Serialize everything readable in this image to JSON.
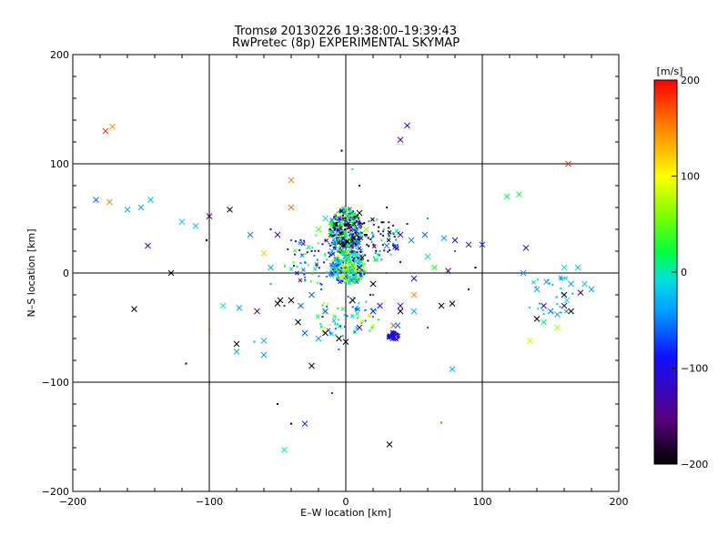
{
  "chart_data": {
    "type": "scatter",
    "title": "Tromsø 20130226 19:38:00–19:39:43",
    "subtitle": "RwPretec (8p) EXPERIMENTAL SKYMAP",
    "xlabel": "E–W location [km]",
    "ylabel": "N–S location [km]",
    "xlim": [
      -200,
      200
    ],
    "ylim": [
      -200,
      200
    ],
    "xticks": [
      "−200",
      "−100",
      "0",
      "100",
      "200"
    ],
    "yticks": [
      "−200",
      "−100",
      "0",
      "100",
      "200"
    ],
    "grid": true,
    "colorbar": {
      "label": "[m/s]",
      "range": [
        -200,
        200
      ],
      "ticks": [
        "200",
        "100",
        "0",
        "−100",
        "−200"
      ]
    },
    "series": [
      {
        "marker": "x",
        "points": [
          [
            -171,
            134,
            150
          ],
          [
            -176,
            130,
            180
          ],
          [
            -183,
            67,
            -60
          ],
          [
            -173,
            65,
            150
          ],
          [
            -160,
            58,
            -30
          ],
          [
            -150,
            60,
            -40
          ],
          [
            -143,
            67,
            -30
          ],
          [
            -145,
            25,
            -100
          ],
          [
            -128,
            0,
            -200
          ],
          [
            -155,
            -33,
            -200
          ],
          [
            -110,
            43,
            -20
          ],
          [
            -100,
            52,
            -160
          ],
          [
            -85,
            58,
            -200
          ],
          [
            -90,
            -30,
            0
          ],
          [
            -78,
            -32,
            -40
          ],
          [
            -60,
            -62,
            -30
          ],
          [
            -50,
            -28,
            -200
          ],
          [
            -40,
            -25,
            -200
          ],
          [
            -48,
            -25,
            -200
          ],
          [
            -35,
            -45,
            -200
          ],
          [
            -15,
            -35,
            -60
          ],
          [
            -20,
            -60,
            -40
          ],
          [
            -30,
            -55,
            -60
          ],
          [
            -25,
            -85,
            -200
          ],
          [
            -15,
            -55,
            -200
          ],
          [
            -5,
            -60,
            -200
          ],
          [
            0,
            -63,
            -200
          ],
          [
            10,
            -50,
            -120
          ],
          [
            20,
            -35,
            -100
          ],
          [
            35,
            -48,
            170
          ],
          [
            33,
            -58,
            -100
          ],
          [
            38,
            -48,
            -60
          ],
          [
            50,
            -35,
            -40
          ],
          [
            70,
            -30,
            -200
          ],
          [
            78,
            -28,
            -200
          ],
          [
            78,
            -88,
            -30
          ],
          [
            40,
            -35,
            -200
          ],
          [
            25,
            -30,
            -100
          ],
          [
            50,
            -5,
            -100
          ],
          [
            60,
            15,
            0
          ],
          [
            65,
            5,
            30
          ],
          [
            80,
            30,
            -100
          ],
          [
            90,
            26,
            -120
          ],
          [
            72,
            32,
            -40
          ],
          [
            45,
            135,
            -100
          ],
          [
            40,
            122,
            -150
          ],
          [
            -40,
            85,
            150
          ],
          [
            -40,
            60,
            160
          ],
          [
            -50,
            35,
            -140
          ],
          [
            -70,
            35,
            -50
          ],
          [
            -80,
            -72,
            -30
          ],
          [
            -80,
            -65,
            -200
          ],
          [
            -60,
            -75,
            -40
          ],
          [
            -30,
            -138,
            -80
          ],
          [
            -45,
            -162,
            10
          ],
          [
            32,
            -157,
            -200
          ],
          [
            -120,
            47,
            -20
          ],
          [
            -60,
            18,
            120
          ],
          [
            -55,
            5,
            -30
          ],
          [
            -65,
            -35,
            -160
          ],
          [
            -33,
            -30,
            -60
          ],
          [
            -25,
            -20,
            -60
          ],
          [
            -10,
            20,
            -30
          ],
          [
            -15,
            50,
            0
          ],
          [
            -20,
            40,
            40
          ],
          [
            10,
            55,
            -200
          ],
          [
            15,
            40,
            60
          ],
          [
            20,
            -10,
            -200
          ],
          [
            10,
            5,
            -140
          ],
          [
            5,
            -25,
            -200
          ],
          [
            30,
            25,
            -50
          ],
          [
            40,
            35,
            -120
          ],
          [
            50,
            -20,
            150
          ],
          [
            58,
            35,
            -60
          ],
          [
            48,
            30,
            -50
          ],
          [
            40,
            -30,
            -140
          ],
          [
            75,
            2,
            -160
          ],
          [
            100,
            26,
            -90
          ],
          [
            118,
            70,
            20
          ],
          [
            127,
            72,
            20
          ],
          [
            132,
            23,
            -130
          ],
          [
            130,
            0,
            -40
          ],
          [
            140,
            -15,
            -30
          ],
          [
            147,
            -8,
            -40
          ],
          [
            160,
            5,
            -10
          ],
          [
            165,
            -10,
            -40
          ],
          [
            170,
            5,
            -20
          ],
          [
            175,
            -10,
            -20
          ],
          [
            180,
            -15,
            -40
          ],
          [
            160,
            -30,
            -160
          ],
          [
            165,
            -35,
            -200
          ],
          [
            150,
            -35,
            -50
          ],
          [
            145,
            -45,
            10
          ],
          [
            140,
            -42,
            -200
          ],
          [
            135,
            -62,
            80
          ],
          [
            155,
            -50,
            70
          ],
          [
            163,
            100,
            180
          ],
          [
            155,
            -38,
            -30
          ],
          [
            172,
            -18,
            -160
          ],
          [
            160,
            -20,
            -200
          ],
          [
            145,
            -30,
            -100
          ],
          [
            162,
            -25,
            -10
          ]
        ]
      },
      {
        "marker": "dot",
        "points": [
          [
            -117,
            -83,
            -200
          ],
          [
            -102,
            30,
            -200
          ],
          [
            -67,
            -63,
            -30
          ],
          [
            -35,
            -45,
            -200
          ],
          [
            -17,
            -40,
            -120
          ],
          [
            -5,
            -70,
            -60
          ],
          [
            -3,
            112,
            -200
          ],
          [
            5,
            95,
            20
          ],
          [
            10,
            80,
            -200
          ],
          [
            60,
            -50,
            -60
          ],
          [
            70,
            -137,
            170
          ],
          [
            -100,
            -52,
            180
          ],
          [
            -40,
            -138,
            -200
          ],
          [
            -50,
            -120,
            -200
          ],
          [
            -10,
            -110,
            -80
          ],
          [
            20,
            -40,
            -40
          ],
          [
            -30,
            10,
            -40
          ],
          [
            -25,
            20,
            -160
          ],
          [
            -15,
            30,
            -100
          ],
          [
            30,
            60,
            -200
          ],
          [
            45,
            45,
            -120
          ],
          [
            60,
            50,
            -40
          ],
          [
            80,
            20,
            -60
          ],
          [
            90,
            -15,
            -100
          ],
          [
            95,
            5,
            -200
          ],
          [
            -12,
            15,
            -60
          ],
          [
            -8,
            25,
            -20
          ],
          [
            15,
            35,
            -160
          ],
          [
            20,
            -20,
            -60
          ],
          [
            25,
            20,
            -40
          ],
          [
            -10,
            0,
            -100
          ],
          [
            10,
            0,
            -80
          ],
          [
            -5,
            10,
            -40
          ],
          [
            5,
            20,
            -120
          ],
          [
            -18,
            -15,
            -60
          ],
          [
            18,
            -20,
            -140
          ],
          [
            30,
            0,
            -60
          ],
          [
            40,
            10,
            -100
          ],
          [
            -40,
            30,
            -60
          ],
          [
            -55,
            40,
            -140
          ],
          [
            -55,
            -10,
            -40
          ],
          [
            -45,
            -30,
            -80
          ]
        ]
      }
    ],
    "clusters": [
      {
        "x": 0,
        "y": 38,
        "rx": 12,
        "ry": 22,
        "values": [
          -200,
          -150,
          -110,
          -60,
          -20,
          20,
          60
        ],
        "n": 420
      },
      {
        "x": 2,
        "y": 5,
        "rx": 13,
        "ry": 15,
        "values": [
          -110,
          -80,
          -40,
          -20,
          0,
          30,
          60,
          90
        ],
        "n": 320
      },
      {
        "x": 35,
        "y": -58,
        "rx": 4,
        "ry": 4,
        "values": [
          -120,
          -110,
          -100
        ],
        "n": 45
      },
      {
        "x": 22,
        "y": 30,
        "rx": 18,
        "ry": 20,
        "values": [
          -200,
          -160,
          -100,
          -40,
          10
        ],
        "n": 80
      },
      {
        "x": -25,
        "y": 10,
        "rx": 20,
        "ry": 25,
        "values": [
          -150,
          -100,
          -50,
          0,
          40
        ],
        "n": 70
      },
      {
        "x": 0,
        "y": -40,
        "rx": 25,
        "ry": 20,
        "values": [
          -60,
          -20,
          20,
          80
        ],
        "n": 60
      },
      {
        "x": 150,
        "y": -20,
        "rx": 20,
        "ry": 20,
        "values": [
          -40,
          -20,
          0
        ],
        "n": 25
      }
    ]
  }
}
